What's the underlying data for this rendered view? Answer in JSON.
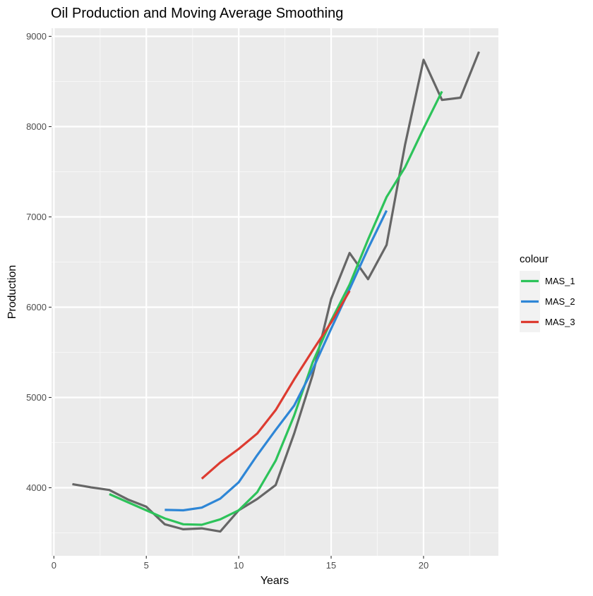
{
  "chart_data": {
    "type": "line",
    "title": "Oil Production and Moving Average Smoothing",
    "xlabel": "Years",
    "ylabel": "Production",
    "xlim": [
      0.0,
      24.0
    ],
    "ylim": [
      3300,
      9300
    ],
    "x_ticks": [
      0,
      5,
      10,
      15,
      20
    ],
    "y_ticks": [
      4000,
      5000,
      6000,
      7000,
      8000,
      9000
    ],
    "grid": true,
    "legend": {
      "title": "colour",
      "position": "right"
    },
    "series": [
      {
        "name": "",
        "color": "#666666",
        "x": [
          1,
          2,
          3,
          4,
          5,
          6,
          7,
          8,
          9,
          10,
          11,
          12,
          13,
          14,
          15,
          16,
          17,
          18,
          19,
          20,
          21,
          22,
          23
        ],
        "y": [
          4040,
          4005,
          3975,
          3870,
          3790,
          3595,
          3540,
          3550,
          3515,
          3750,
          3875,
          4030,
          4600,
          5250,
          6090,
          6600,
          6310,
          6690,
          7800,
          8740,
          8295,
          8320,
          8830
        ]
      },
      {
        "name": "MAS_1",
        "color": "#2dc35a",
        "x": [
          3,
          4,
          5,
          6,
          7,
          8,
          9,
          10,
          11,
          12,
          13,
          14,
          15,
          16,
          17,
          18,
          19,
          20,
          21
        ],
        "y": [
          3930,
          3840,
          3750,
          3660,
          3595,
          3590,
          3650,
          3750,
          3950,
          4300,
          4800,
          5390,
          5850,
          6250,
          6750,
          7220,
          7550,
          7980,
          8390
        ]
      },
      {
        "name": "MAS_2",
        "color": "#2e86d6",
        "x": [
          6,
          7,
          8,
          9,
          10,
          11,
          12,
          13,
          14,
          15,
          16,
          17,
          18
        ],
        "y": [
          3755,
          3750,
          3780,
          3880,
          4060,
          4360,
          4640,
          4910,
          5310,
          5760,
          6200,
          6650,
          7070
        ]
      },
      {
        "name": "MAS_3",
        "color": "#dd3b30",
        "x": [
          8,
          9,
          10,
          11,
          12,
          13,
          14,
          15,
          16
        ],
        "y": [
          4100,
          4280,
          4430,
          4600,
          4860,
          5200,
          5520,
          5830,
          6180
        ]
      }
    ]
  }
}
